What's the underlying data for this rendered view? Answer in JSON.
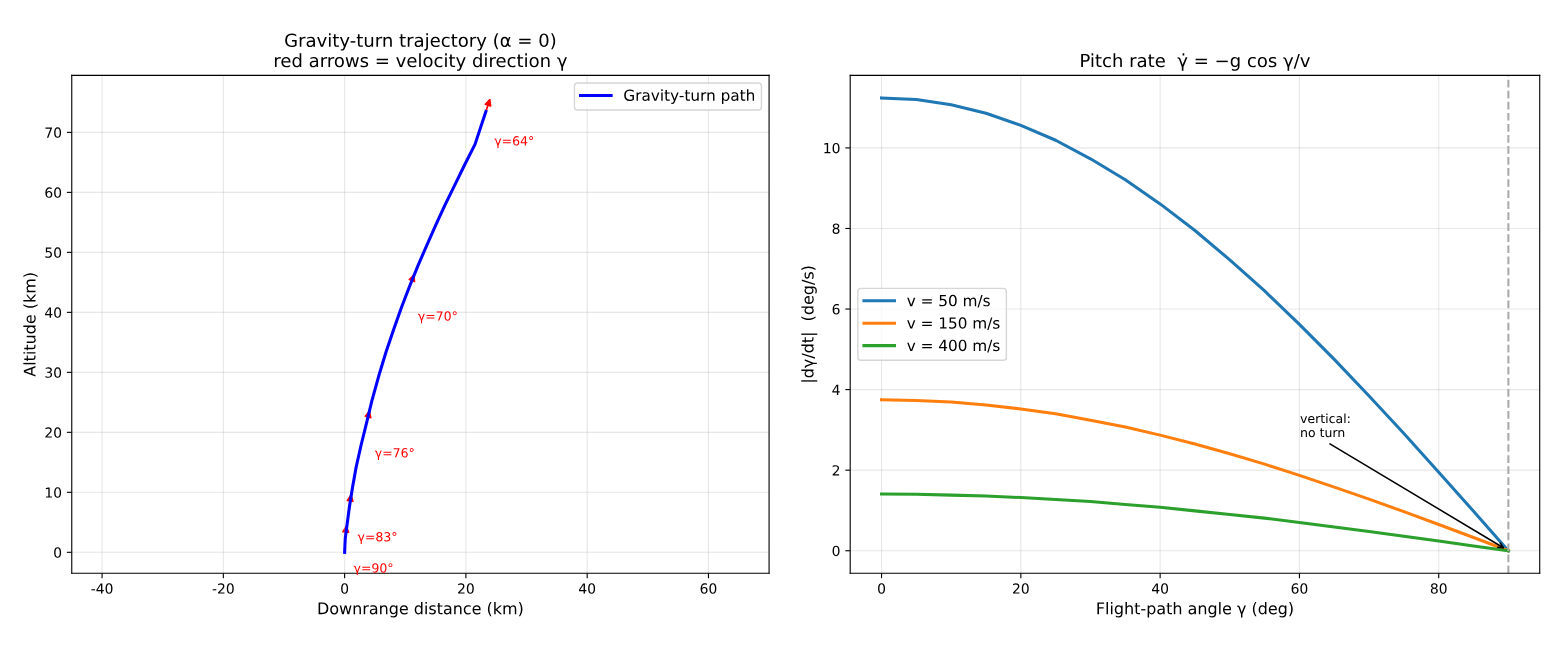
{
  "chart_data": [
    {
      "type": "line",
      "title": "Gravity-turn trajectory (α = 0)\nred arrows = velocity direction γ",
      "xlabel": "Downrange distance (km)",
      "ylabel": "Altitude (km)",
      "series": [
        {
          "name": "Gravity-turn path",
          "color": "#0000ff",
          "x": [
            0,
            0.1,
            0.4,
            0.78,
            1.3,
            1.9,
            2.7,
            3.6,
            4.5,
            5.6,
            6.8,
            8.1,
            9.4,
            10.7,
            12.1,
            13.6,
            15.1,
            16.6,
            18.2,
            19.8,
            21.5,
            23.3
          ],
          "values": [
            0,
            2.3,
            4.6,
            7.5,
            10.8,
            14.2,
            17.8,
            21.5,
            25.3,
            29.3,
            33.3,
            37.2,
            40.9,
            44.3,
            47.8,
            51.3,
            54.7,
            58.0,
            61.3,
            64.6,
            68.0,
            73.5
          ]
        }
      ],
      "annotations": [
        {
          "text": "γ=90°",
          "x": 0.1,
          "y": 2.3
        },
        {
          "text": "γ=83°",
          "x": 0.75,
          "y": 7.5
        },
        {
          "text": "γ=76°",
          "x": 3.6,
          "y": 21.5
        },
        {
          "text": "γ=70°",
          "x": 10.7,
          "y": 44.3
        },
        {
          "text": "γ=64°",
          "x": 23.3,
          "y": 73.5
        }
      ],
      "xlim": [
        -45,
        70
      ],
      "xticks": [
        -40,
        -20,
        0,
        20,
        40,
        60
      ],
      "ylim": [
        -3.5,
        79.5
      ],
      "yticks": [
        0,
        10,
        20,
        30,
        40,
        50,
        60,
        70
      ],
      "grid": true,
      "legend": "top right"
    },
    {
      "type": "line",
      "title": "Pitch rate  γ̇ = −g cos γ/v",
      "xlabel": "Flight-path angle γ (deg)",
      "ylabel": "|dγ/dt|  (deg/s)",
      "x": [
        0,
        5,
        10,
        15,
        20,
        25,
        30,
        35,
        40,
        45,
        50,
        55,
        60,
        65,
        70,
        75,
        80,
        85,
        90
      ],
      "series": [
        {
          "name": "v = 50 m/s",
          "color": "#1f77b4",
          "values": [
            11.24,
            11.2,
            11.07,
            10.86,
            10.56,
            10.19,
            9.73,
            9.21,
            8.61,
            7.95,
            7.22,
            6.45,
            5.62,
            4.75,
            3.84,
            2.91,
            1.95,
            0.98,
            0
          ]
        },
        {
          "name": "v = 150 m/s",
          "color": "#ff7f0e",
          "values": [
            3.75,
            3.73,
            3.69,
            3.62,
            3.52,
            3.4,
            3.24,
            3.07,
            2.87,
            2.65,
            2.41,
            2.15,
            1.87,
            1.58,
            1.28,
            0.97,
            0.65,
            0.33,
            0
          ]
        },
        {
          "name": "v = 400 m/s",
          "color": "#2ca02c",
          "values": [
            1.41,
            1.4,
            1.38,
            1.36,
            1.32,
            1.27,
            1.22,
            1.15,
            1.08,
            0.99,
            0.9,
            0.81,
            0.7,
            0.59,
            0.48,
            0.36,
            0.24,
            0.12,
            0
          ]
        }
      ],
      "annotations": [
        {
          "text": "vertical:\nno turn",
          "x": 90,
          "y": 0
        }
      ],
      "ref_lines": [
        {
          "axis": "x",
          "value": 90,
          "color": "#aaaaaa",
          "line_style": "dashed"
        }
      ],
      "xlim": [
        -4.5,
        94.5
      ],
      "xticks": [
        0,
        20,
        40,
        60,
        80
      ],
      "ylim": [
        -0.56,
        11.8
      ],
      "yticks": [
        0,
        2,
        4,
        6,
        8,
        10
      ],
      "grid": true,
      "legend": "left"
    }
  ]
}
